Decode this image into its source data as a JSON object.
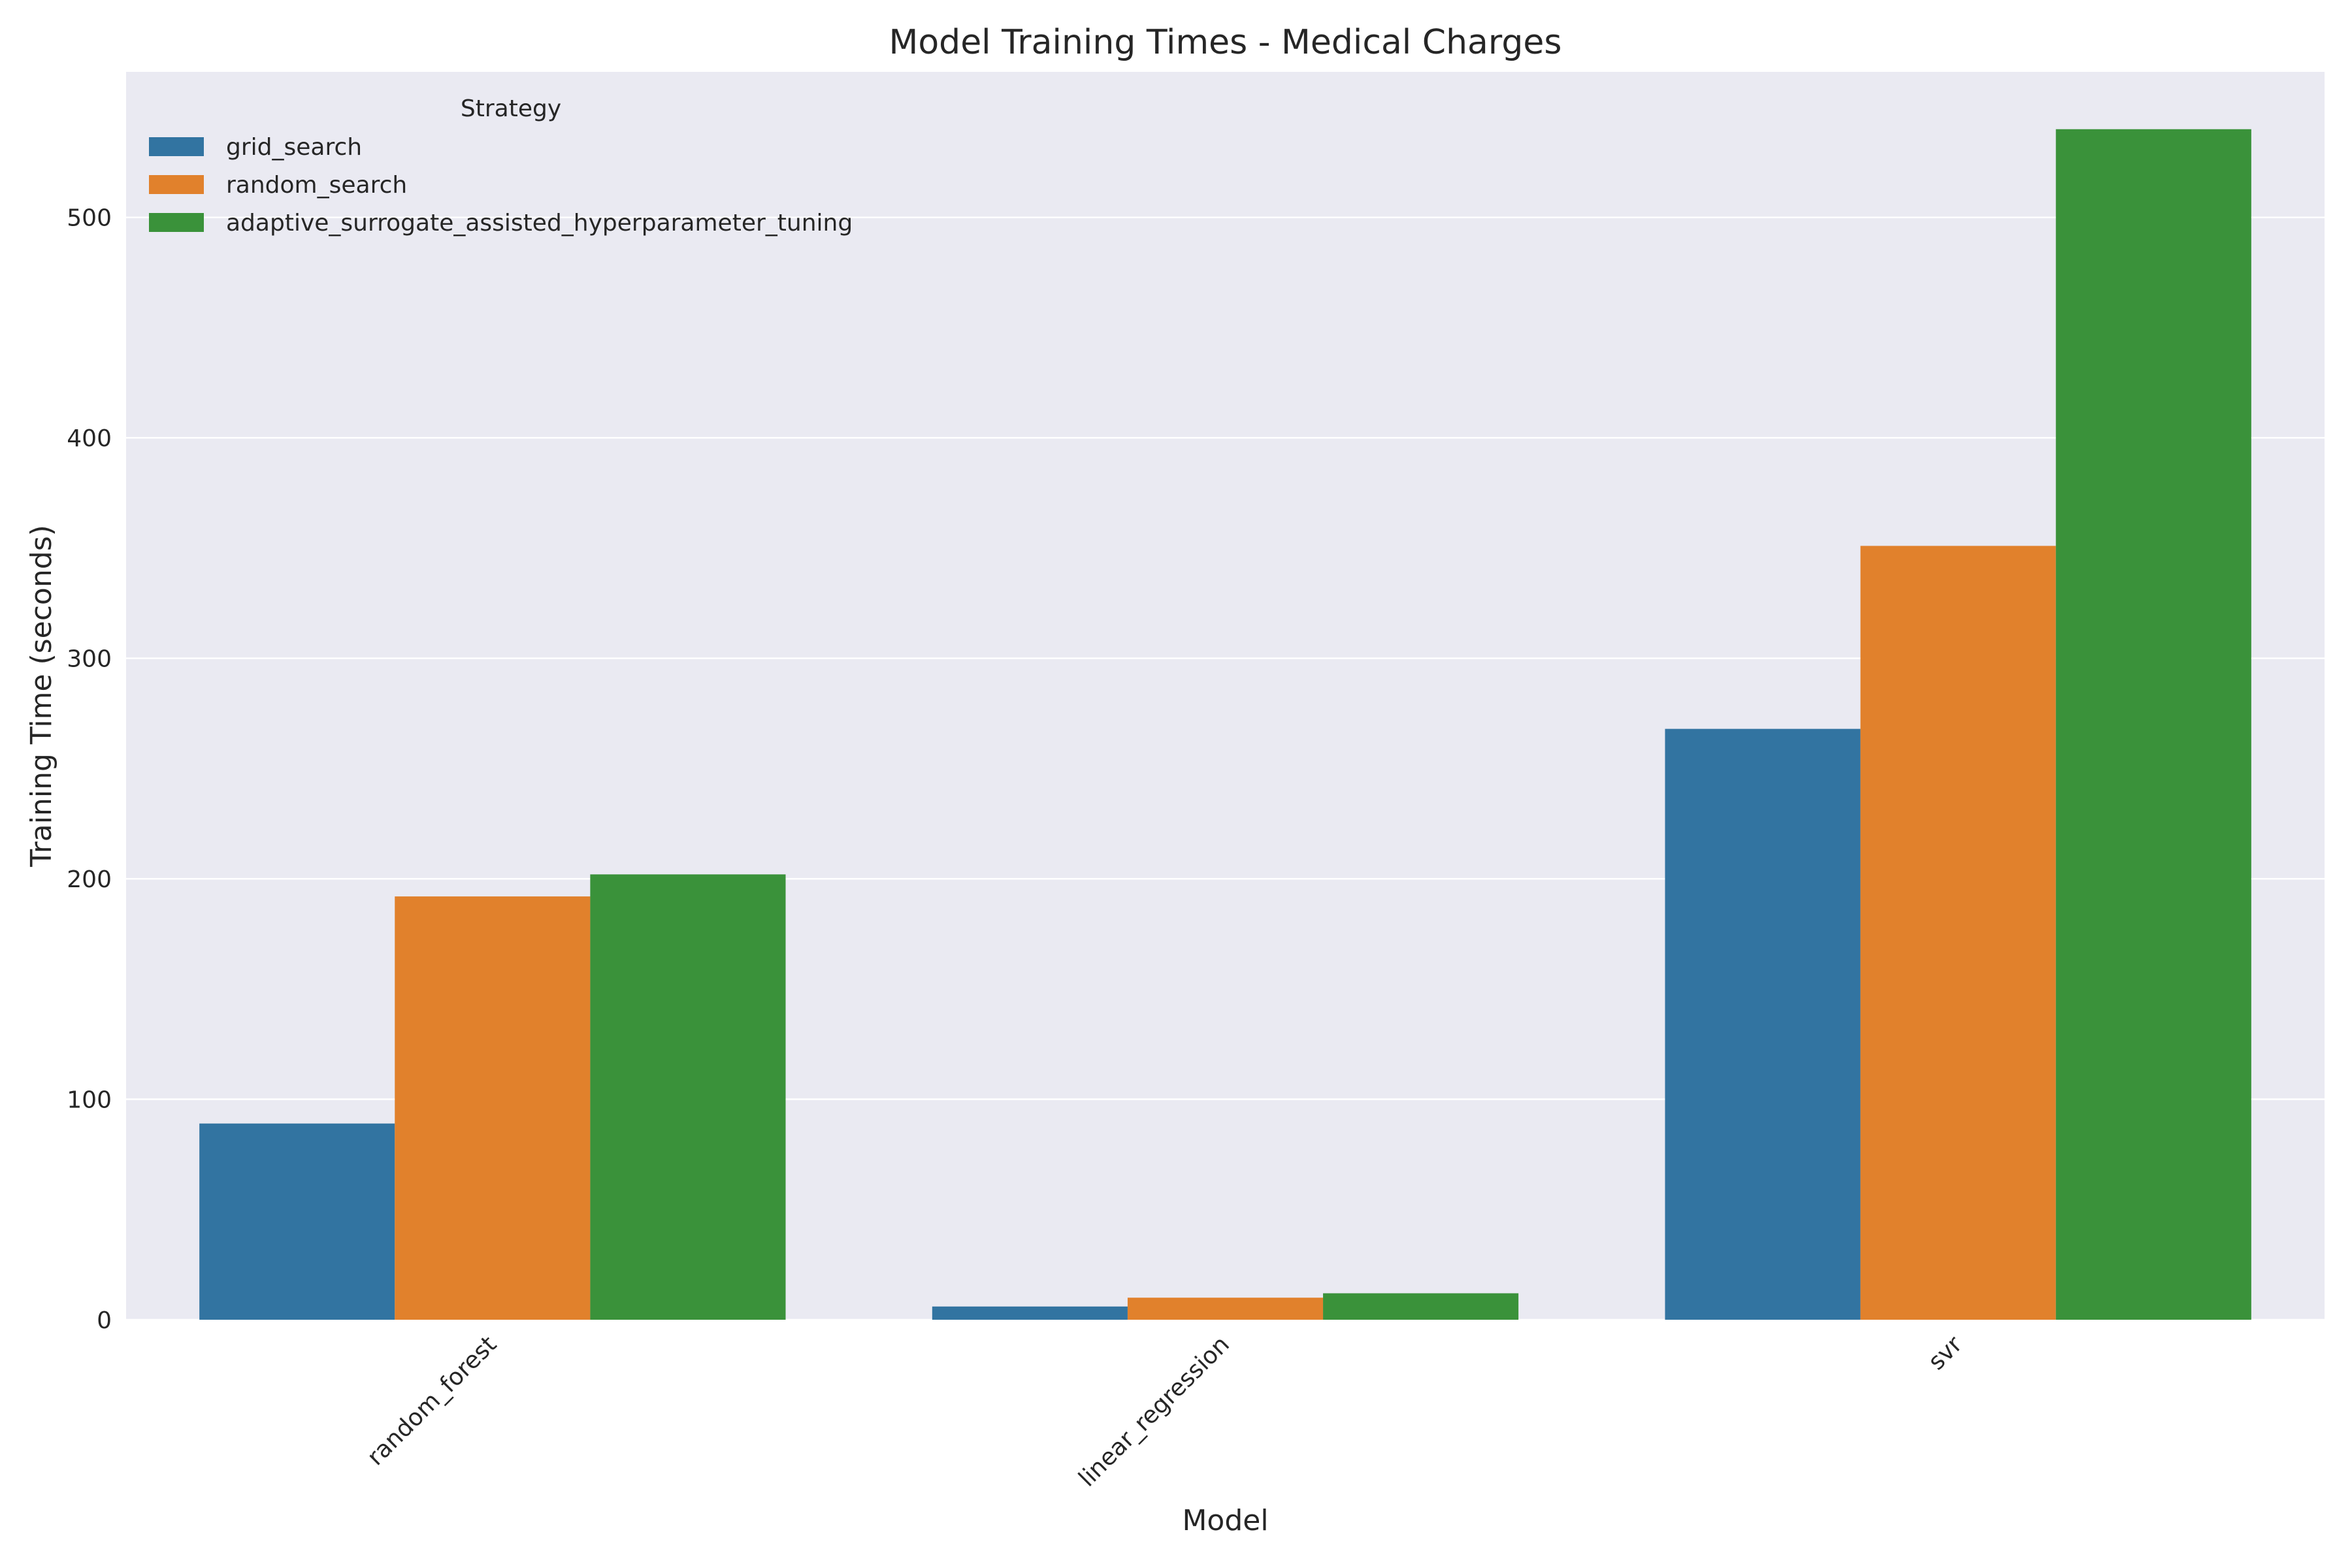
{
  "chart_data": {
    "type": "bar",
    "title": "Model Training Times - Medical Charges",
    "xlabel": "Model",
    "ylabel": "Training Time (seconds)",
    "categories": [
      "random_forest",
      "linear_regression",
      "svr"
    ],
    "series": [
      {
        "name": "grid_search",
        "color": "#3274a1",
        "values": [
          89,
          6,
          268
        ]
      },
      {
        "name": "random_search",
        "color": "#e1812c",
        "values": [
          192,
          10,
          351
        ]
      },
      {
        "name": "adaptive_surrogate_assisted_hyperparameter_tuning",
        "color": "#3a923a",
        "values": [
          202,
          12,
          540
        ]
      }
    ],
    "ylim": [
      0,
      566
    ],
    "yticks": [
      0,
      100,
      200,
      300,
      400,
      500
    ],
    "grid": true,
    "legend": {
      "title": "Strategy",
      "placement": "top-left"
    },
    "background": "#eaeaf2"
  }
}
